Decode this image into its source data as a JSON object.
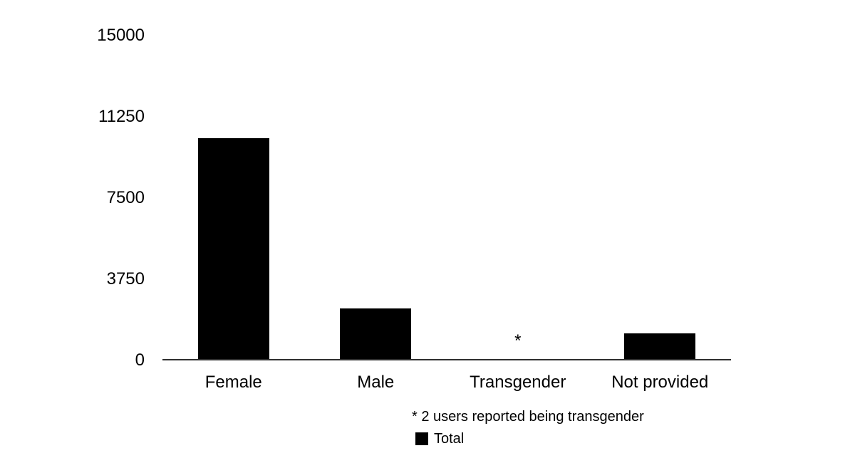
{
  "chart_data": {
    "type": "bar",
    "categories": [
      "Female",
      "Male",
      "Transgender",
      "Not provided"
    ],
    "series": [
      {
        "name": "Total",
        "values": [
          10250,
          2400,
          2,
          1250
        ]
      }
    ],
    "ylim": [
      0,
      15000
    ],
    "yticks": [
      0,
      3750,
      7500,
      11250,
      15000
    ],
    "grid": false,
    "legend_position": "bottom",
    "bar_color": "#000000",
    "axis_line_color": "#2f2f2f",
    "background_color": "#ffffff",
    "text_color": "#000000",
    "annotations": [
      {
        "category_index": 2,
        "text": "*"
      }
    ],
    "footnote": "* 2 users reported being transgender"
  }
}
